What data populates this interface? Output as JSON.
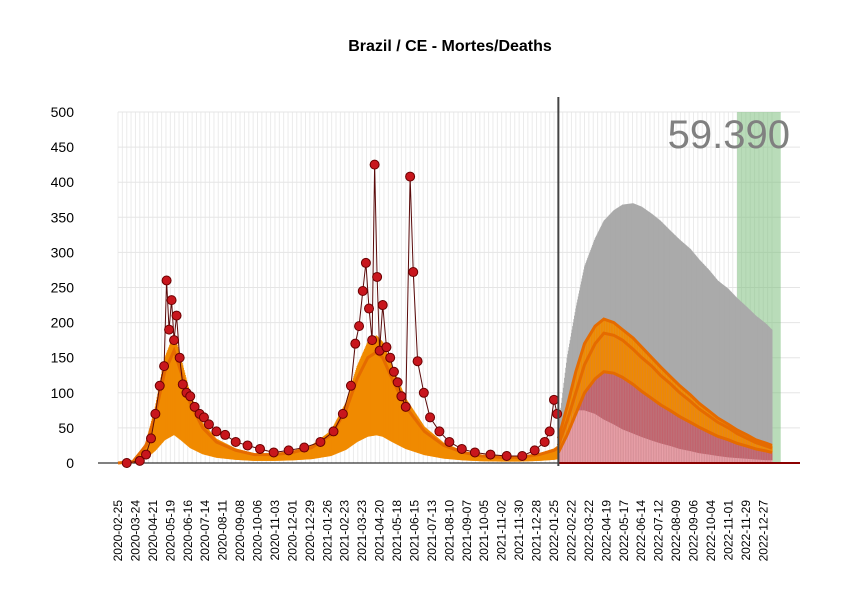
{
  "chart_data": {
    "type": "line",
    "title": "Brazil / CE - Mortes/Deaths",
    "total_label": "59.390",
    "ylim": [
      0,
      500
    ],
    "y_ticks": [
      0,
      50,
      100,
      150,
      200,
      250,
      300,
      350,
      400,
      450,
      500
    ],
    "x_start": "2020-02-25",
    "x_end": "2023-01-10",
    "vline_date": "2022-02-01",
    "green_band": [
      "2022-11-15",
      "2023-01-24"
    ],
    "x_tick_labels": [
      "2020-02-25",
      "2020-03-24",
      "2020-04-21",
      "2020-05-19",
      "2020-06-16",
      "2020-07-14",
      "2020-08-11",
      "2020-09-08",
      "2020-10-06",
      "2020-11-03",
      "2020-12-01",
      "2020-12-29",
      "2021-01-26",
      "2021-02-23",
      "2021-03-23",
      "2021-04-20",
      "2021-05-18",
      "2021-06-15",
      "2021-07-13",
      "2021-08-10",
      "2021-09-07",
      "2021-10-05",
      "2021-11-02",
      "2021-11-30",
      "2021-12-28",
      "2022-01-25",
      "2022-02-22",
      "2022-03-22",
      "2022-04-19",
      "2022-05-17",
      "2022-06-14",
      "2022-07-12",
      "2022-08-09",
      "2022-09-06",
      "2022-10-04",
      "2022-11-01",
      "2022-11-29",
      "2022-12-27"
    ],
    "observed": {
      "dates": [
        "2020-03-10",
        "2020-03-31",
        "2020-04-10",
        "2020-04-18",
        "2020-04-25",
        "2020-05-02",
        "2020-05-09",
        "2020-05-13",
        "2020-05-17",
        "2020-05-21",
        "2020-05-25",
        "2020-05-29",
        "2020-06-03",
        "2020-06-08",
        "2020-06-14",
        "2020-06-20",
        "2020-06-27",
        "2020-07-05",
        "2020-07-12",
        "2020-07-20",
        "2020-08-01",
        "2020-08-15",
        "2020-09-01",
        "2020-09-20",
        "2020-10-10",
        "2020-11-01",
        "2020-11-25",
        "2020-12-20",
        "2021-01-15",
        "2021-02-05",
        "2021-02-20",
        "2021-03-05",
        "2021-03-12",
        "2021-03-18",
        "2021-03-24",
        "2021-03-29",
        "2021-04-03",
        "2021-04-08",
        "2021-04-12",
        "2021-04-16",
        "2021-04-20",
        "2021-04-25",
        "2021-05-01",
        "2021-05-07",
        "2021-05-13",
        "2021-05-19",
        "2021-05-25",
        "2021-06-01",
        "2021-06-08",
        "2021-06-13",
        "2021-06-20",
        "2021-06-30",
        "2021-07-10",
        "2021-07-25",
        "2021-08-10",
        "2021-08-30",
        "2021-09-20",
        "2021-10-15",
        "2021-11-10",
        "2021-12-05",
        "2021-12-25",
        "2022-01-10",
        "2022-01-18",
        "2022-01-25",
        "2022-01-30"
      ],
      "values": [
        0,
        3,
        12,
        35,
        70,
        110,
        138,
        260,
        190,
        232,
        175,
        210,
        150,
        112,
        100,
        95,
        80,
        70,
        65,
        55,
        45,
        40,
        30,
        25,
        20,
        15,
        18,
        22,
        30,
        45,
        70,
        110,
        170,
        195,
        245,
        285,
        220,
        175,
        425,
        265,
        160,
        225,
        165,
        150,
        130,
        115,
        95,
        80,
        408,
        272,
        145,
        100,
        65,
        45,
        30,
        20,
        15,
        12,
        10,
        10,
        18,
        30,
        45,
        90,
        70
      ]
    },
    "fit_observed": {
      "dates": [
        "2020-02-25",
        "2020-03-20",
        "2020-04-10",
        "2020-04-25",
        "2020-05-10",
        "2020-05-25",
        "2020-06-05",
        "2020-06-20",
        "2020-07-10",
        "2020-08-01",
        "2020-09-01",
        "2020-10-01",
        "2020-11-01",
        "2020-12-01",
        "2021-01-01",
        "2021-02-01",
        "2021-02-25",
        "2021-03-15",
        "2021-04-01",
        "2021-04-15",
        "2021-04-25",
        "2021-05-10",
        "2021-06-01",
        "2021-07-01",
        "2021-08-01",
        "2021-09-01",
        "2021-10-01",
        "2021-11-01",
        "2021-12-01",
        "2022-01-01",
        "2022-01-25",
        "2022-02-01"
      ],
      "values": [
        0,
        2,
        25,
        70,
        130,
        160,
        130,
        85,
        50,
        30,
        18,
        12,
        12,
        15,
        22,
        40,
        75,
        120,
        150,
        158,
        150,
        120,
        80,
        45,
        25,
        15,
        10,
        8,
        8,
        12,
        18,
        22
      ]
    },
    "forecast": {
      "dates": [
        "2022-02-01",
        "2022-02-15",
        "2022-03-01",
        "2022-03-15",
        "2022-04-01",
        "2022-04-15",
        "2022-05-01",
        "2022-05-15",
        "2022-06-01",
        "2022-06-15",
        "2022-07-01",
        "2022-07-15",
        "2022-08-01",
        "2022-08-15",
        "2022-09-01",
        "2022-09-15",
        "2022-10-01",
        "2022-10-15",
        "2022-11-01",
        "2022-11-15",
        "2022-12-01",
        "2022-12-15",
        "2023-01-01",
        "2023-01-10"
      ],
      "median": [
        25,
        60,
        100,
        140,
        170,
        185,
        182,
        175,
        162,
        150,
        138,
        125,
        112,
        100,
        88,
        77,
        67,
        58,
        50,
        42,
        35,
        29,
        24,
        21
      ],
      "inner_low": [
        15,
        40,
        70,
        100,
        120,
        130,
        128,
        122,
        112,
        102,
        92,
        83,
        74,
        66,
        58,
        51,
        44,
        38,
        33,
        28,
        24,
        20,
        17,
        15
      ],
      "inner_high": [
        35,
        80,
        130,
        170,
        195,
        205,
        200,
        190,
        178,
        165,
        150,
        137,
        122,
        110,
        97,
        85,
        74,
        64,
        55,
        47,
        40,
        33,
        28,
        25
      ],
      "upper": [
        50,
        150,
        220,
        280,
        320,
        345,
        360,
        368,
        370,
        365,
        355,
        345,
        330,
        318,
        305,
        290,
        275,
        260,
        248,
        235,
        222,
        210,
        198,
        190
      ],
      "lower": [
        30,
        60,
        75,
        75,
        70,
        62,
        55,
        48,
        42,
        37,
        32,
        28,
        24,
        20,
        17,
        14,
        12,
        10,
        8,
        7,
        6,
        5,
        4,
        4
      ]
    }
  }
}
